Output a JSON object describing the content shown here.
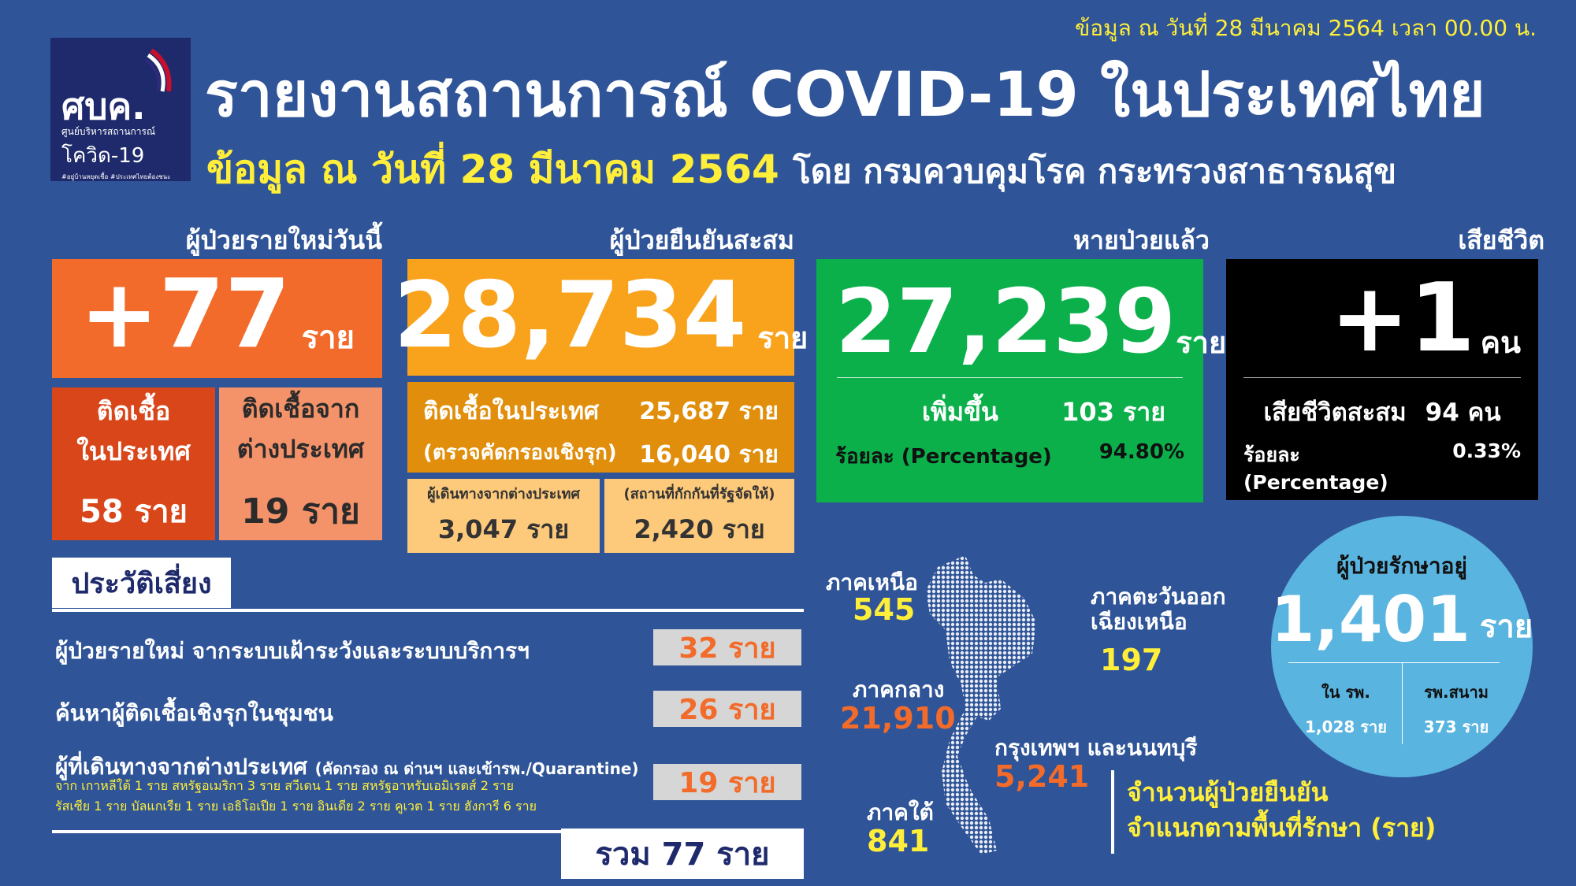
{
  "date_note": "ข้อมูล ณ วันที่ 28 มีนาคม 2564 เวลา 00.00 น.",
  "logo": {
    "text": "ศบค.",
    "line1": "ศูนย์บริหารสถานการณ์",
    "line2": "โควิด-19",
    "tag": "#อยู่บ้านหยุดเชื้อ #ประเทศไทยต้องชนะ"
  },
  "title": "รายงานสถานการณ์ COVID-19 ในประเทศไทย",
  "subtitle": {
    "date": "ข้อมูล ณ วันที่ 28 มีนาคม 2564",
    "source": "โดย กรมควบคุมโรค กระทรวงสาธารณสุข"
  },
  "new_cases": {
    "header": "ผู้ป่วยรายใหม่วันนี้",
    "value": "+77",
    "unit": "ราย",
    "local": {
      "label1": "ติดเชื้อ",
      "label2": "ในประเทศ",
      "value": "58 ราย"
    },
    "imported": {
      "label1": "ติดเชื้อจาก",
      "label2": "ต่างประเทศ",
      "value": "19 ราย"
    }
  },
  "cumulative": {
    "header": "ผู้ป่วยยืนยันสะสม",
    "value": "28,734",
    "unit": "ราย",
    "local_label": "ติดเชื้อในประเทศ",
    "local_value": "25,687 ราย",
    "active_label": "(ตรวจคัดกรองเชิงรุก)",
    "active_value": "16,040 ราย",
    "travel_label": "ผู้เดินทางจากต่างประเทศ",
    "travel_value": "3,047 ราย",
    "quarantine_label": "(สถานที่กักกันที่รัฐจัดให้)",
    "quarantine_value": "2,420 ราย"
  },
  "recovered": {
    "header": "หายป่วยแล้ว",
    "value": "27,239",
    "unit": "ราย",
    "inc_label": "เพิ่มขึ้น",
    "inc_value": "103 ราย",
    "pct_label": "ร้อยละ (Percentage)",
    "pct_value": "94.80%"
  },
  "deaths": {
    "header": "เสียชีวิต",
    "value": "+1",
    "unit": "คน",
    "cum_label": "เสียชีวิตสะสม",
    "cum_value": "94 คน",
    "pct_label": "ร้อยละ (Percentage)",
    "pct_value": "0.33%"
  },
  "risk": {
    "header": "ประวัติเสี่ยง",
    "rows": [
      {
        "label": "ผู้ป่วยรายใหม่ จากระบบเฝ้าระวังและระบบบริการฯ",
        "value": "32 ราย"
      },
      {
        "label": "ค้นหาผู้ติดเชื้อเชิงรุกในชุมชน",
        "value": "26 ราย"
      },
      {
        "label": "ผู้ที่เดินทางจากต่างประเทศ",
        "note": "(คัดกรอง ณ ด่านฯ และเข้ารพ./Quarantine)",
        "value": "19 ราย",
        "detail1": "จาก เกาหลีใต้ 1 ราย สหรัฐอเมริกา 3 ราย สวีเดน 1 ราย สหรัฐอาหรับเอมิเรตส์ 2 ราย",
        "detail2": "รัสเซีย 1 ราย บัลแกเรีย 1 ราย เอธิโอเปีย 1 ราย อินเดีย 2 ราย คูเวต 1 ราย ฮังการี 6 ราย"
      }
    ],
    "total": "รวม 77 ราย"
  },
  "regions": [
    {
      "name": "ภาคเหนือ",
      "value": "545"
    },
    {
      "name": "ภาคตะวันออกเฉียงเหนือ",
      "value": "197"
    },
    {
      "name": "ภาคกลาง",
      "value": "21,910"
    },
    {
      "name": "กรุงเทพฯ และนนทบุรี",
      "value": "5,241"
    },
    {
      "name": "ภาคใต้",
      "value": "841"
    }
  ],
  "map_legend": {
    "line1": "จำนวนผู้ป่วยยืนยัน",
    "line2": "จำแนกตามพื้นที่รักษา (ราย)"
  },
  "treating": {
    "header": "ผู้ป่วยรักษาอยู่",
    "value": "1,401",
    "unit": "ราย",
    "hosp_label": "ใน รพ.",
    "hosp_value": "1,028 ราย",
    "field_label": "รพ.สนาม",
    "field_value": "373 ราย"
  },
  "colors": {
    "bg": "#2f5497",
    "new": "#f26b2a",
    "cum": "#f9a21b",
    "recovered": "#0bb04b",
    "deaths": "#000000",
    "treating": "#5ab4e0",
    "highlight": "#ffef3a"
  }
}
